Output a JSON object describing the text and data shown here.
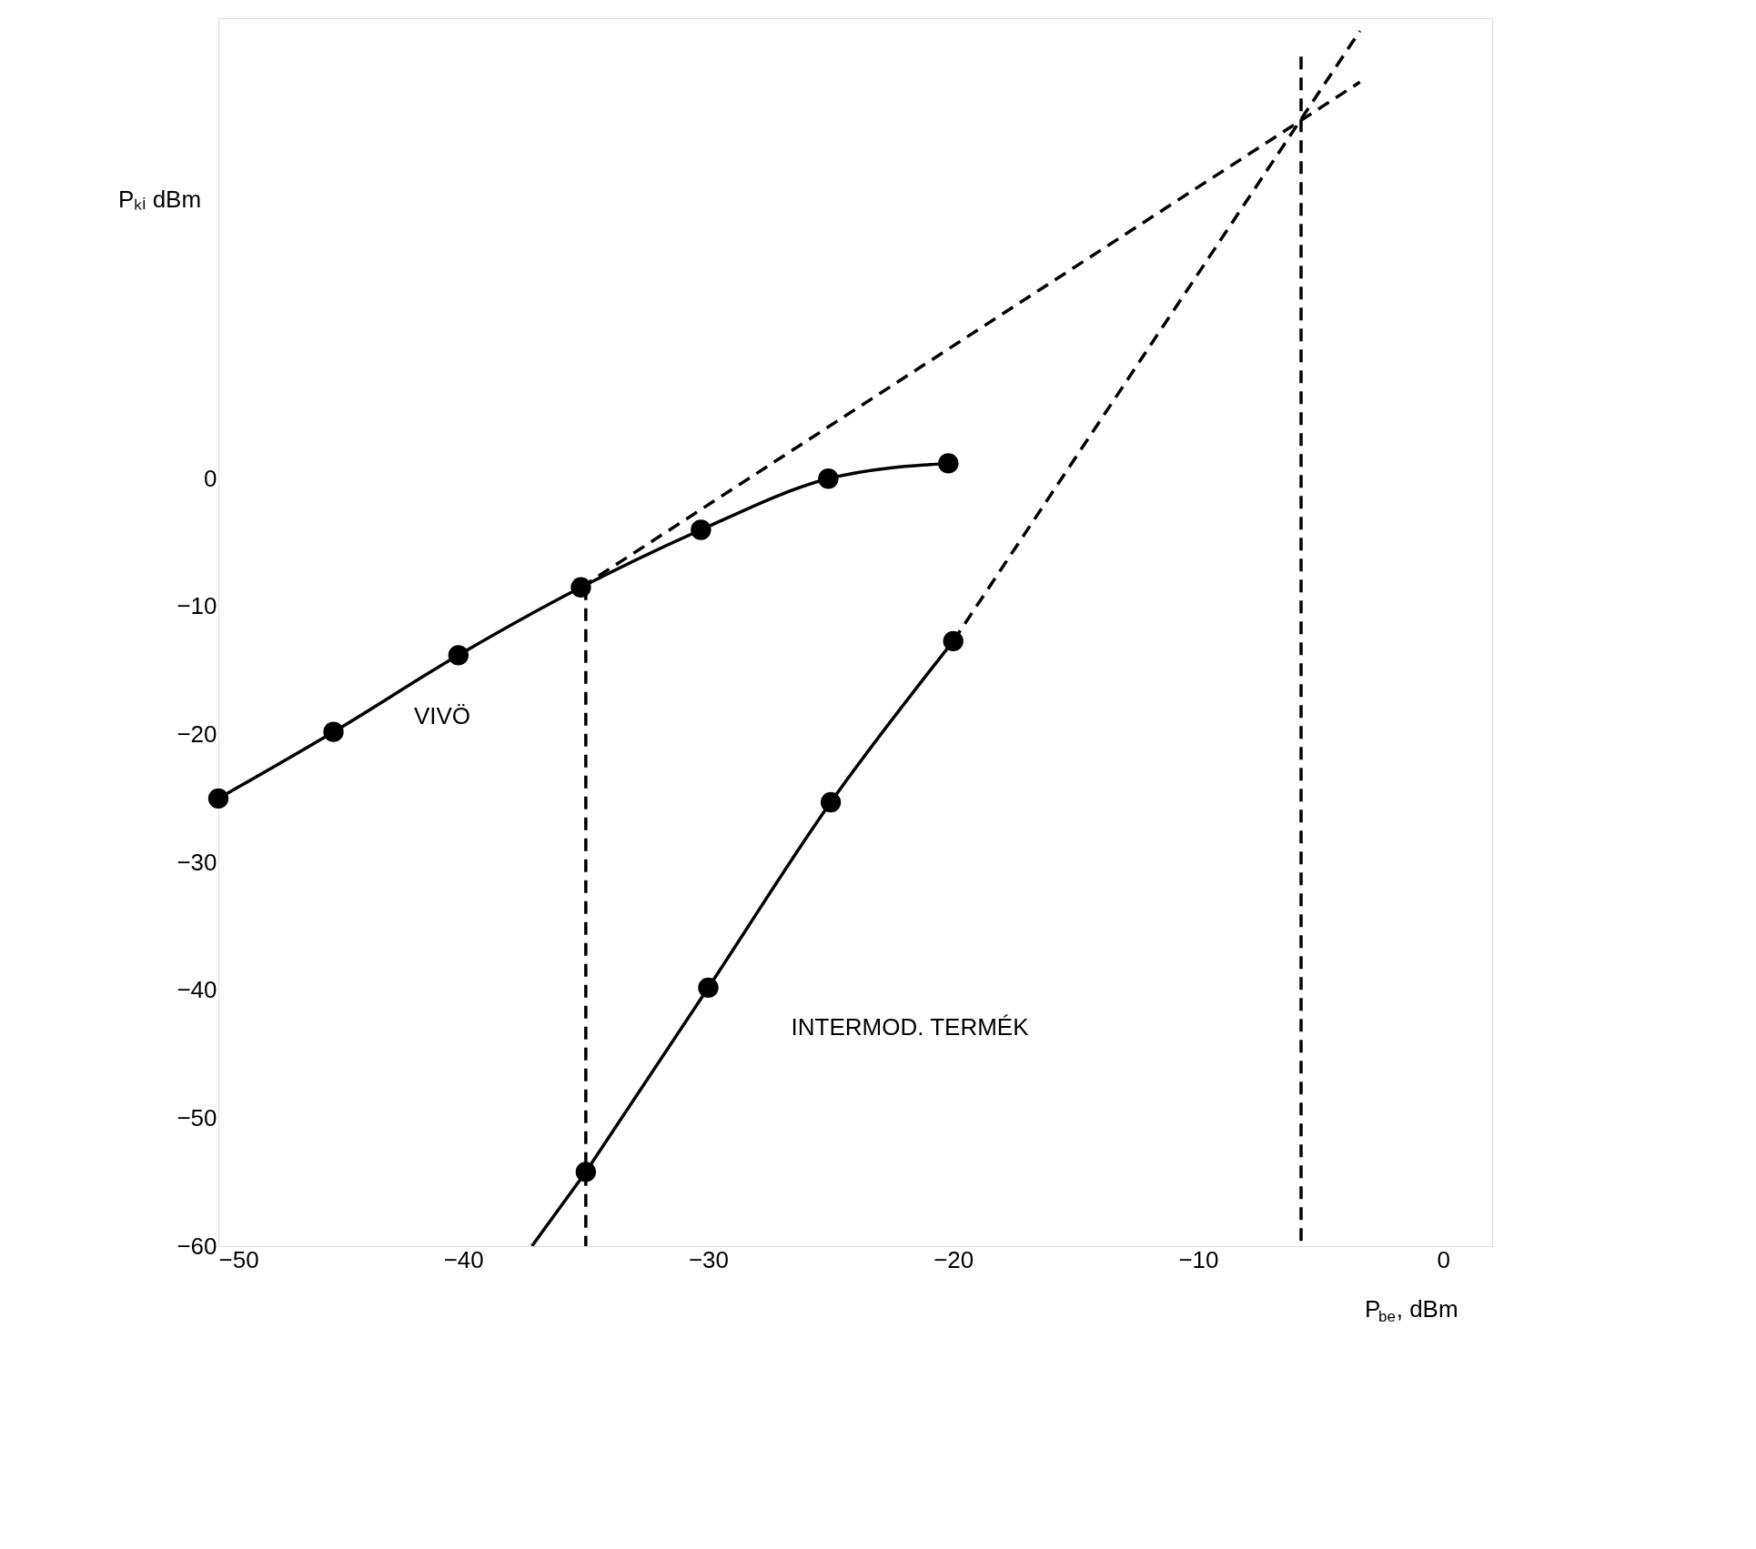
{
  "chart_data": {
    "type": "line",
    "xlabel": "P$_{be}$, dBm",
    "ylabel": "Pₖᵢ dBm",
    "xlim": [
      -50,
      2
    ],
    "ylim": [
      -60,
      36
    ],
    "xticks": [
      -50,
      -40,
      -30,
      -20,
      -10,
      0
    ],
    "yticks": [
      0,
      -10,
      -20,
      -30,
      -40,
      -50,
      -60
    ],
    "grid": false,
    "series": [
      {
        "color": "#000000",
        "x": [
          -50,
          -45.3,
          -40.2,
          -35.2,
          -30.3,
          -25.1,
          -20.2
        ],
        "values": [
          -25,
          -19.8,
          -13.8,
          -8.5,
          -4,
          0,
          1.2
        ],
        "marker": "circle",
        "line_style": "solid"
      },
      {
        "color": "#000000",
        "x": [
          -35,
          -30,
          -25,
          -20
        ],
        "values": [
          -54.2,
          -39.8,
          -25.3,
          -12.7
        ],
        "marker": "circle",
        "line_style": "solid"
      },
      {
        "color": "#000000",
        "x": [
          -37.2,
          -35
        ],
        "values": [
          -60,
          -54.2
        ],
        "marker": "none",
        "line_style": "solid"
      },
      {
        "color": "#000000",
        "x": [
          -35.2,
          -3.4
        ],
        "values": [
          -8.5,
          31
        ],
        "marker": "none",
        "line_style": "dashed"
      },
      {
        "color": "#000000",
        "x": [
          -20,
          -3.4
        ],
        "values": [
          -12.7,
          35
        ],
        "marker": "none",
        "line_style": "dashed"
      },
      {
        "color": "#000000",
        "x": [
          -35,
          -35
        ],
        "values": [
          -8.5,
          -60
        ],
        "marker": "none",
        "line_style": "dashed"
      },
      {
        "color": "#000000",
        "x": [
          -5.8,
          -5.8
        ],
        "values": [
          33,
          -60
        ],
        "marker": "none",
        "line_style": "dashed"
      }
    ],
    "annotations": [
      "VIVÖ",
      "INTERMOD. TERMÉK"
    ]
  }
}
